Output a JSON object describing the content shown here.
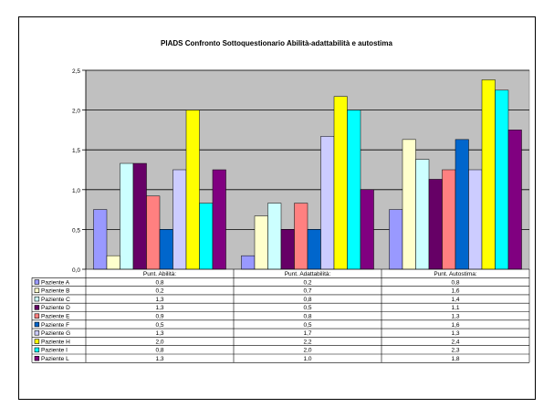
{
  "chart_data": {
    "type": "bar",
    "title": "PIADS Confronto Sottoquestionario Abilità-adattabilità e autostima",
    "categories": [
      "Punt. Abilità:",
      "Punt. Adattabilità:",
      "Punt. Autostima:"
    ],
    "ylim": [
      0,
      2.5
    ],
    "yticks": [
      "0,0",
      "0,5",
      "1,0",
      "1,5",
      "2,0",
      "2,5"
    ],
    "grid": true,
    "legend": "data-table-left",
    "series": [
      {
        "name": "Paziente A",
        "color": "#9999ff",
        "values": [
          0.75,
          0.17,
          0.75
        ],
        "labels": [
          "0,8",
          "0,2",
          "0,8"
        ]
      },
      {
        "name": "Paziente B",
        "color": "#ffffcc",
        "values": [
          0.17,
          0.67,
          1.63
        ],
        "labels": [
          "0,2",
          "0,7",
          "1,6"
        ]
      },
      {
        "name": "Paziente C",
        "color": "#ccffff",
        "values": [
          1.33,
          0.83,
          1.38
        ],
        "labels": [
          "1,3",
          "0,8",
          "1,4"
        ]
      },
      {
        "name": "Paziente D",
        "color": "#660066",
        "values": [
          1.33,
          0.5,
          1.13
        ],
        "labels": [
          "1,3",
          "0,5",
          "1,1"
        ]
      },
      {
        "name": "Paziente E",
        "color": "#ff8080",
        "values": [
          0.92,
          0.83,
          1.25
        ],
        "labels": [
          "0,9",
          "0,8",
          "1,3"
        ]
      },
      {
        "name": "Paziente F",
        "color": "#0066cc",
        "values": [
          0.5,
          0.5,
          1.63
        ],
        "labels": [
          "0,5",
          "0,5",
          "1,6"
        ]
      },
      {
        "name": "Paziente G",
        "color": "#ccccff",
        "values": [
          1.25,
          1.67,
          1.25
        ],
        "labels": [
          "1,3",
          "1,7",
          "1,3"
        ]
      },
      {
        "name": "Paziente H",
        "color": "#ffff00",
        "values": [
          2.0,
          2.17,
          2.38
        ],
        "labels": [
          "2,0",
          "2,2",
          "2,4"
        ]
      },
      {
        "name": "Paziente I",
        "color": "#00ffff",
        "values": [
          0.83,
          2.0,
          2.25
        ],
        "labels": [
          "0,8",
          "2,0",
          "2,3"
        ]
      },
      {
        "name": "Paziente L",
        "color": "#800080",
        "values": [
          1.25,
          1.0,
          1.75
        ],
        "labels": [
          "1,3",
          "1,0",
          "1,8"
        ]
      }
    ]
  },
  "colors": {
    "plot_bg": "#c0c0c0",
    "grid": "#000000"
  }
}
